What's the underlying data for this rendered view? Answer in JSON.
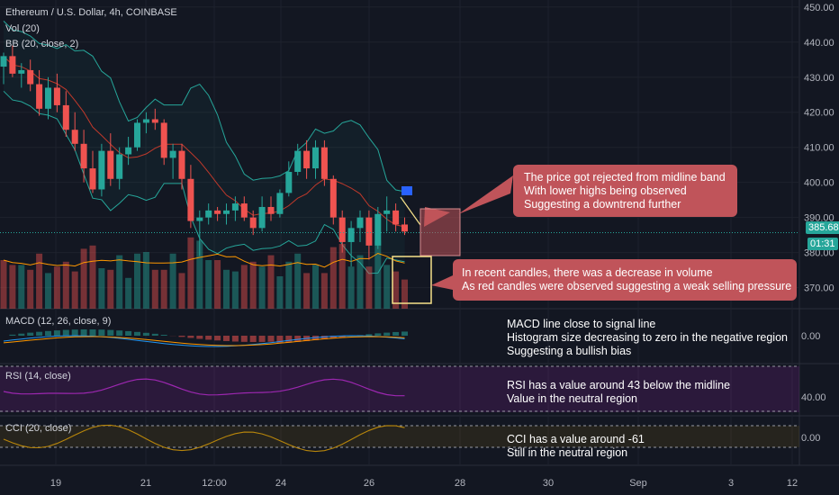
{
  "header": {
    "symbol_title": "Ethereum / U.S. Dollar, 4h, COINBASE",
    "vol_label": "Vol (20)",
    "bb_label": "BB (20, close, 2)",
    "macd_label": "MACD (12, 26, close, 9)",
    "rsi_label": "RSI (14, close)",
    "cci_label": "CCI (20, close)"
  },
  "price_tags": {
    "last_price": "385.68",
    "countdown": "01:31"
  },
  "annotations": {
    "price_note": [
      "The price got rejected from midline band",
      "With lower highs being observed",
      "Suggesting a downtrend further"
    ],
    "volume_note": [
      "In recent candles, there was a decrease in volume",
      "As red candles were observed suggesting a weak selling pressure"
    ],
    "macd_note": [
      "MACD line close to signal line",
      "Histogram size decreasing to zero in the negative region",
      "Suggesting a bullish bias"
    ],
    "rsi_note": [
      "RSI has a value around 43 below the midline",
      "Value in the neutral region"
    ],
    "cci_note": [
      "CCI has a value around -61",
      "Still in the neutral region"
    ]
  },
  "colors": {
    "background": "#131722",
    "up": "#26a69a",
    "down": "#ef5350",
    "bb_band": "#26a69a",
    "bb_basis": "#c0392b",
    "note_fill": "#c0545a",
    "rsi_line": "#9c27b0",
    "cci_line": "#b8860b",
    "macd_line": "#2196f3",
    "signal_line": "#ff9800",
    "highlight_box": "#f7e28a",
    "flag": "#2962ff"
  },
  "chart_data": {
    "type": "candlestick",
    "main_axis": {
      "ticks": [
        "450.00",
        "440.00",
        "430.00",
        "420.00",
        "410.00",
        "400.00",
        "390.00",
        "380.00",
        "370.00"
      ],
      "ylim": [
        364,
        452
      ]
    },
    "x_ticks": [
      "19",
      "21",
      "12:00",
      "24",
      "26",
      "28",
      "30",
      "Sep",
      "3",
      "12"
    ],
    "candles": [
      {
        "o": 433,
        "h": 437,
        "l": 428,
        "c": 436
      },
      {
        "o": 436,
        "h": 439,
        "l": 430,
        "c": 431
      },
      {
        "o": 431,
        "h": 434,
        "l": 427,
        "c": 432
      },
      {
        "o": 432,
        "h": 435,
        "l": 426,
        "c": 428
      },
      {
        "o": 428,
        "h": 432,
        "l": 419,
        "c": 421
      },
      {
        "o": 421,
        "h": 430,
        "l": 418,
        "c": 427
      },
      {
        "o": 427,
        "h": 431,
        "l": 420,
        "c": 422
      },
      {
        "o": 422,
        "h": 426,
        "l": 413,
        "c": 415
      },
      {
        "o": 415,
        "h": 420,
        "l": 409,
        "c": 411
      },
      {
        "o": 411,
        "h": 415,
        "l": 400,
        "c": 404
      },
      {
        "o": 404,
        "h": 409,
        "l": 397,
        "c": 398
      },
      {
        "o": 398,
        "h": 411,
        "l": 396,
        "c": 409
      },
      {
        "o": 409,
        "h": 414,
        "l": 399,
        "c": 401
      },
      {
        "o": 401,
        "h": 410,
        "l": 398,
        "c": 408
      },
      {
        "o": 408,
        "h": 413,
        "l": 405,
        "c": 410
      },
      {
        "o": 410,
        "h": 418,
        "l": 409,
        "c": 417
      },
      {
        "o": 417,
        "h": 420,
        "l": 414,
        "c": 418
      },
      {
        "o": 418,
        "h": 421,
        "l": 415,
        "c": 417
      },
      {
        "o": 417,
        "h": 418,
        "l": 405,
        "c": 407
      },
      {
        "o": 407,
        "h": 411,
        "l": 401,
        "c": 409
      },
      {
        "o": 409,
        "h": 411,
        "l": 398,
        "c": 401
      },
      {
        "o": 401,
        "h": 405,
        "l": 387,
        "c": 389
      },
      {
        "o": 389,
        "h": 392,
        "l": 379,
        "c": 390
      },
      {
        "o": 390,
        "h": 394,
        "l": 388,
        "c": 392
      },
      {
        "o": 392,
        "h": 393,
        "l": 389,
        "c": 391
      },
      {
        "o": 391,
        "h": 394,
        "l": 388,
        "c": 392
      },
      {
        "o": 392,
        "h": 396,
        "l": 389,
        "c": 394
      },
      {
        "o": 394,
        "h": 396,
        "l": 389,
        "c": 390
      },
      {
        "o": 390,
        "h": 392,
        "l": 385,
        "c": 387
      },
      {
        "o": 387,
        "h": 396,
        "l": 386,
        "c": 393
      },
      {
        "o": 393,
        "h": 396,
        "l": 389,
        "c": 391
      },
      {
        "o": 391,
        "h": 398,
        "l": 390,
        "c": 397
      },
      {
        "o": 397,
        "h": 406,
        "l": 396,
        "c": 403
      },
      {
        "o": 403,
        "h": 411,
        "l": 402,
        "c": 409
      },
      {
        "o": 409,
        "h": 412,
        "l": 401,
        "c": 404
      },
      {
        "o": 404,
        "h": 412,
        "l": 401,
        "c": 410
      },
      {
        "o": 410,
        "h": 412,
        "l": 399,
        "c": 401
      },
      {
        "o": 401,
        "h": 402,
        "l": 388,
        "c": 390
      },
      {
        "o": 390,
        "h": 392,
        "l": 380,
        "c": 383
      },
      {
        "o": 383,
        "h": 389,
        "l": 376,
        "c": 387
      },
      {
        "o": 387,
        "h": 392,
        "l": 383,
        "c": 390
      },
      {
        "o": 390,
        "h": 392,
        "l": 378,
        "c": 382
      },
      {
        "o": 382,
        "h": 393,
        "l": 381,
        "c": 391
      },
      {
        "o": 391,
        "h": 396,
        "l": 386,
        "c": 392
      },
      {
        "o": 392,
        "h": 394,
        "l": 386,
        "c": 388
      },
      {
        "o": 388,
        "h": 390,
        "l": 385,
        "c": 386
      }
    ],
    "volume": [
      30,
      27,
      27,
      24,
      34,
      22,
      26,
      29,
      23,
      37,
      39,
      25,
      24,
      33,
      19,
      34,
      35,
      24,
      24,
      34,
      22,
      44,
      42,
      30,
      30,
      24,
      23,
      27,
      29,
      26,
      33,
      20,
      29,
      34,
      22,
      27,
      22,
      38,
      40,
      26,
      33,
      26,
      42,
      27,
      23,
      18
    ],
    "volume_colors": [
      "down",
      "down",
      "up",
      "down",
      "down",
      "up",
      "down",
      "down",
      "down",
      "down",
      "down",
      "up",
      "down",
      "up",
      "up",
      "up",
      "up",
      "down",
      "down",
      "up",
      "down",
      "down",
      "up",
      "up",
      "down",
      "up",
      "up",
      "down",
      "down",
      "up",
      "down",
      "up",
      "up",
      "up",
      "down",
      "up",
      "down",
      "down",
      "down",
      "up",
      "up",
      "down",
      "up",
      "up",
      "down",
      "down"
    ],
    "macd": {
      "value_label": "0.00"
    },
    "rsi": {
      "value_label": "40.00"
    },
    "cci": {
      "value_label": "0.00"
    }
  }
}
